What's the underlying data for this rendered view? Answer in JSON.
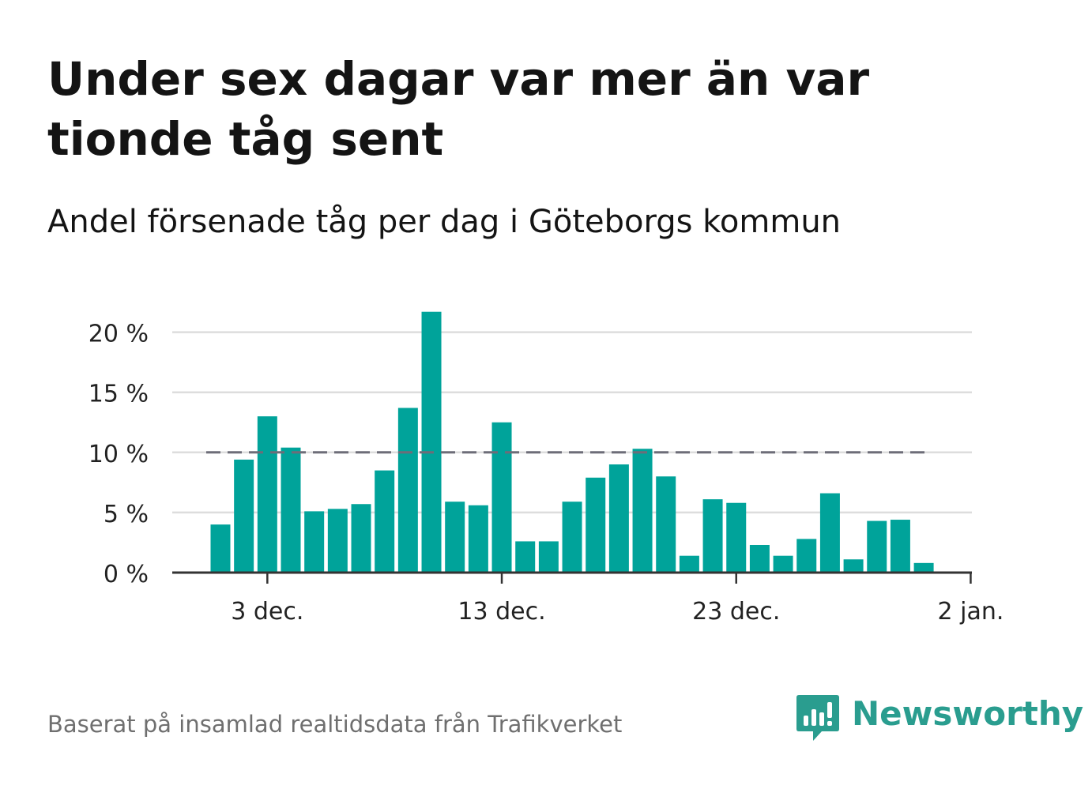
{
  "title": "Under sex dagar var mer än var tionde tåg sent",
  "subtitle": "Andel försenade tåg per dag i Göteborgs kommun",
  "footer": "Baserat på insamlad realtidsdata från Trafikverket",
  "brand": "Newsworthy",
  "colors": {
    "bar": "#00a39a",
    "threshold": "#6d6d78",
    "grid": "#dddddd",
    "axis": "#333333",
    "brand": "#2a9d8f"
  },
  "chart_data": {
    "type": "bar",
    "x": [
      "2023-12-01",
      "2023-12-02",
      "2023-12-03",
      "2023-12-04",
      "2023-12-05",
      "2023-12-06",
      "2023-12-07",
      "2023-12-08",
      "2023-12-09",
      "2023-12-10",
      "2023-12-11",
      "2023-12-12",
      "2023-12-13",
      "2023-12-14",
      "2023-12-15",
      "2023-12-16",
      "2023-12-17",
      "2023-12-18",
      "2023-12-19",
      "2023-12-20",
      "2023-12-21",
      "2023-12-22",
      "2023-12-23",
      "2023-12-24",
      "2023-12-25",
      "2023-12-26",
      "2023-12-27",
      "2023-12-28",
      "2023-12-29",
      "2023-12-30",
      "2023-12-31"
    ],
    "values": [
      4.0,
      9.4,
      13.0,
      10.4,
      5.1,
      5.3,
      5.7,
      8.5,
      13.7,
      21.7,
      5.9,
      5.6,
      12.5,
      2.6,
      2.6,
      5.9,
      7.9,
      9.0,
      10.3,
      8.0,
      1.4,
      6.1,
      5.8,
      2.3,
      1.4,
      2.8,
      6.6,
      1.1,
      4.3,
      4.4,
      0.8
    ],
    "threshold": 10,
    "ylim": [
      0,
      22
    ],
    "yticks": [
      0,
      5,
      10,
      15,
      20
    ],
    "ytick_labels": [
      "0 %",
      "5 %",
      "10 %",
      "15 %",
      "20 %"
    ],
    "xticks": [
      "2023-12-03",
      "2023-12-13",
      "2023-12-23",
      "2024-01-02"
    ],
    "xtick_labels": [
      "3 dec.",
      "13 dec.",
      "23 dec.",
      "2 jan."
    ],
    "grid": true,
    "xlabel": "",
    "ylabel": ""
  }
}
